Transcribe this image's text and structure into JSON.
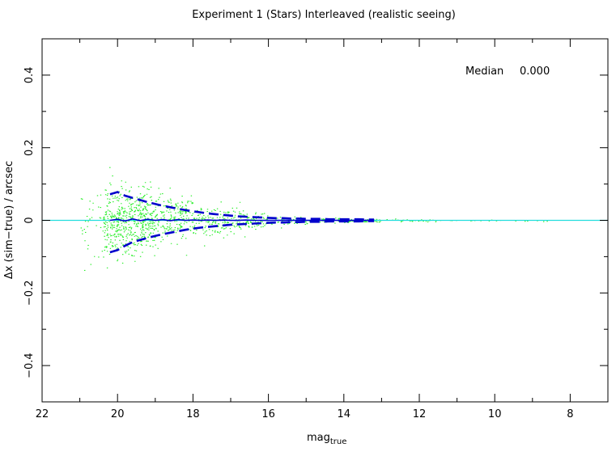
{
  "chart_data": {
    "type": "scatter",
    "title": "Experiment 1 (Stars) Interleaved (realistic seeing)",
    "xlabel_main": "mag",
    "xlabel_sub": "true",
    "ylabel": "Δx (sim−true) / arcsec",
    "xlim": [
      22,
      7
    ],
    "ylim": [
      -0.5,
      0.5
    ],
    "x_ticks": [
      "22",
      "20",
      "18",
      "16",
      "14",
      "12",
      "10",
      "8"
    ],
    "x_tick_values": [
      22,
      20,
      18,
      16,
      14,
      12,
      10,
      8
    ],
    "y_ticks": [
      "−0.4",
      "−0.2",
      "0",
      "0.2",
      "0.4"
    ],
    "y_tick_values": [
      -0.4,
      -0.2,
      0,
      0.2,
      0.4
    ],
    "annotation_label": "Median",
    "annotation_value": "0.000",
    "zero_line": 0,
    "scatter_envelope": {
      "mag": [
        21.0,
        20.5,
        20.0,
        19.5,
        19.0,
        18.5,
        18.0,
        17.5,
        17.0,
        16.5,
        16.0,
        15.5,
        15.0,
        14.5,
        14.0,
        13.5,
        13.0,
        12.0,
        11.0,
        10.0,
        9.0
      ],
      "sigma": [
        0.06,
        0.055,
        0.05,
        0.045,
        0.04,
        0.033,
        0.027,
        0.021,
        0.016,
        0.012,
        0.009,
        0.007,
        0.005,
        0.004,
        0.003,
        0.0025,
        0.002,
        0.0015,
        0.0012,
        0.001,
        0.001
      ]
    },
    "series": [
      {
        "name": "median",
        "style": "solid",
        "x": [
          20.2,
          20.0,
          19.8,
          19.6,
          19.4,
          19.2,
          19.0,
          18.8,
          18.6,
          18.4,
          18.2,
          18.0,
          17.8,
          17.6,
          17.4,
          17.2,
          17.0,
          16.8,
          16.6,
          16.4,
          16.2,
          16.0,
          15.8,
          15.6,
          15.4,
          15.2,
          15.0,
          14.8,
          14.6,
          14.4,
          14.2,
          14.0,
          13.8,
          13.6,
          13.4,
          13.2
        ],
        "y": [
          0.0,
          0.003,
          -0.002,
          0.004,
          -0.001,
          0.003,
          0.0,
          0.002,
          -0.001,
          0.002,
          0.0,
          0.001,
          0.0,
          0.001,
          0.0,
          0.001,
          0.0,
          0.0,
          0.001,
          0.0,
          0.0,
          0.0,
          0.0,
          0.0,
          0.0,
          0.0,
          0.0,
          0.0,
          0.0,
          0.0,
          0.0,
          0.0,
          0.0,
          0.0,
          0.0,
          0.0
        ]
      },
      {
        "name": "upper",
        "style": "dashed",
        "x": [
          20.2,
          20.0,
          19.8,
          19.6,
          19.4,
          19.2,
          19.0,
          18.8,
          18.6,
          18.4,
          18.2,
          18.0,
          17.8,
          17.6,
          17.4,
          17.2,
          17.0,
          16.8,
          16.6,
          16.4,
          16.2,
          16.0,
          15.8,
          15.6,
          15.4,
          15.2,
          15.0,
          14.8,
          14.6,
          14.4,
          14.2,
          14.0,
          13.8,
          13.6,
          13.4,
          13.2
        ],
        "y": [
          0.072,
          0.078,
          0.068,
          0.062,
          0.056,
          0.05,
          0.045,
          0.04,
          0.036,
          0.032,
          0.028,
          0.025,
          0.022,
          0.019,
          0.017,
          0.015,
          0.013,
          0.011,
          0.01,
          0.009,
          0.008,
          0.007,
          0.006,
          0.006,
          0.005,
          0.005,
          0.004,
          0.004,
          0.004,
          0.003,
          0.003,
          0.003,
          0.003,
          0.003,
          0.002,
          0.002
        ]
      },
      {
        "name": "lower",
        "style": "dashed",
        "x": [
          20.2,
          20.0,
          19.8,
          19.6,
          19.4,
          19.2,
          19.0,
          18.8,
          18.6,
          18.4,
          18.2,
          18.0,
          17.8,
          17.6,
          17.4,
          17.2,
          17.0,
          16.8,
          16.6,
          16.4,
          16.2,
          16.0,
          15.8,
          15.6,
          15.4,
          15.2,
          15.0,
          14.8,
          14.6,
          14.4,
          14.2,
          14.0,
          13.8,
          13.6,
          13.4,
          13.2
        ],
        "y": [
          -0.088,
          -0.082,
          -0.07,
          -0.06,
          -0.054,
          -0.048,
          -0.043,
          -0.038,
          -0.034,
          -0.03,
          -0.026,
          -0.023,
          -0.02,
          -0.018,
          -0.016,
          -0.014,
          -0.012,
          -0.011,
          -0.01,
          -0.009,
          -0.008,
          -0.007,
          -0.006,
          -0.006,
          -0.005,
          -0.005,
          -0.004,
          -0.004,
          -0.004,
          -0.003,
          -0.003,
          -0.003,
          -0.003,
          -0.003,
          -0.002,
          -0.002
        ]
      }
    ],
    "colors": {
      "points": "#22ee22",
      "median_lines": "#0000cc",
      "zero_line": "#22dddd",
      "axes": "#000000"
    },
    "grid": false,
    "legend": "none"
  }
}
